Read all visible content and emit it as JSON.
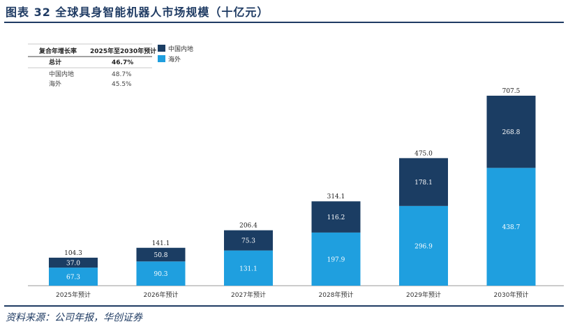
{
  "header": {
    "title": "图表 32 全球具身智能机器人市场规模（十亿元）"
  },
  "summary_table": {
    "col1_header": "复合年增长率",
    "col2_header": "2025年至2030年预计",
    "rows": [
      {
        "label": "总计",
        "value": "46.7%",
        "bold": true
      },
      {
        "label": "中国内地",
        "value": "48.7%",
        "bold": false
      },
      {
        "label": "海外",
        "value": "45.5%",
        "bold": false
      }
    ]
  },
  "footer": {
    "source": "资料来源：公司年报，华创证券"
  },
  "colors": {
    "domestic": "#1b3d63",
    "overseas": "#1f9fdf",
    "rule": "#1f3b63"
  },
  "chart_data": {
    "type": "bar",
    "stacked": true,
    "categories": [
      "2025年预计",
      "2026年预计",
      "2027年预计",
      "2028年预计",
      "2029年预计",
      "2030年预计"
    ],
    "series": [
      {
        "name": "海外",
        "values": [
          67.3,
          90.3,
          131.1,
          197.9,
          296.9,
          438.7
        ]
      },
      {
        "name": "中国内地",
        "values": [
          37.0,
          50.8,
          75.3,
          116.2,
          178.1,
          268.8
        ]
      }
    ],
    "totals": [
      104.3,
      141.1,
      206.4,
      314.1,
      475.0,
      707.5
    ],
    "legend_placement": "top-left",
    "grid": false,
    "ylim": [
      0,
      800
    ]
  }
}
